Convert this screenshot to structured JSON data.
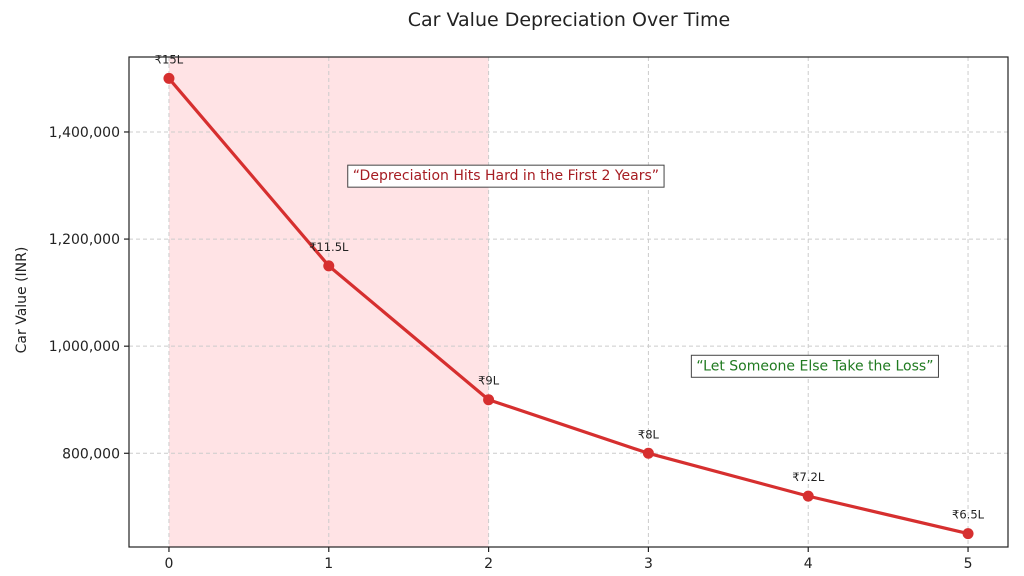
{
  "chart_data": {
    "type": "line",
    "title": "Car Value Depreciation Over Time",
    "xlabel": "",
    "ylabel": "Car Value (INR)",
    "x": [
      0,
      1,
      2,
      3,
      4,
      5
    ],
    "xlim": [
      -0.25,
      5.25
    ],
    "ylim": [
      625000,
      1540000
    ],
    "yticks": [
      800000,
      1000000,
      1200000,
      1400000
    ],
    "ytick_labels": [
      "800,000",
      "1,000,000",
      "1,200,000",
      "1,400,000"
    ],
    "xtick_labels": [
      "0",
      "1",
      "2",
      "3",
      "4",
      "5"
    ],
    "grid": true,
    "series": [
      {
        "values": [
          1500000,
          1150000,
          900000,
          800000,
          720000,
          650000
        ],
        "labels": [
          "₹15L",
          "₹11.5L",
          "₹9L",
          "₹8L",
          "₹7.2L",
          "₹6.5L"
        ],
        "color": "#d62f2f"
      }
    ],
    "shaded_region": {
      "x_from": 0,
      "x_to": 2,
      "color": "#ffe3e5"
    },
    "annotations": [
      {
        "text": "“Depreciation Hits Hard in the First 2 Years”",
        "x": 1.15,
        "y": 1310000,
        "color": "#a61c22"
      },
      {
        "text": "“Let Someone Else Take the Loss”",
        "x": 3.3,
        "y": 955000,
        "color": "#1f7a1f"
      }
    ]
  }
}
